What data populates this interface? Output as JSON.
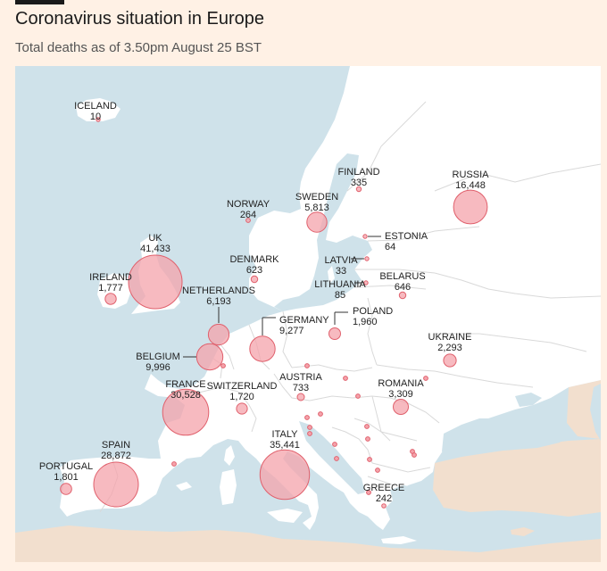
{
  "header": {
    "title": "Coronavirus situation in Europe",
    "subtitle": "Total deaths as of 3.50pm August 25 BST"
  },
  "colors": {
    "page_background": "#fff1e5",
    "sea": "#cfe2ea",
    "land": "#ffffff",
    "other_land": "#f2dfce",
    "bubble_fill": "#f4a3ab",
    "bubble_stroke": "#e0606c",
    "border": "#d9d9d9"
  },
  "legend": "none",
  "countries": [
    {
      "name": "ICELAND",
      "deaths": "10"
    },
    {
      "name": "FINLAND",
      "deaths": "335"
    },
    {
      "name": "RUSSIA",
      "deaths": "16,448"
    },
    {
      "name": "SWEDEN",
      "deaths": "5,813"
    },
    {
      "name": "NORWAY",
      "deaths": "264"
    },
    {
      "name": "ESTONIA",
      "deaths": "64"
    },
    {
      "name": "UK",
      "deaths": "41,433"
    },
    {
      "name": "DENMARK",
      "deaths": "623"
    },
    {
      "name": "LATVIA",
      "deaths": "33"
    },
    {
      "name": "IRELAND",
      "deaths": "1,777"
    },
    {
      "name": "LITHUANIA",
      "deaths": "85"
    },
    {
      "name": "BELARUS",
      "deaths": "646"
    },
    {
      "name": "NETHERLANDS",
      "deaths": "6,193"
    },
    {
      "name": "POLAND",
      "deaths": "1,960"
    },
    {
      "name": "GERMANY",
      "deaths": "9,277"
    },
    {
      "name": "UKRAINE",
      "deaths": "2,293"
    },
    {
      "name": "BELGIUM",
      "deaths": "9,996"
    },
    {
      "name": "FRANCE",
      "deaths": "30,528"
    },
    {
      "name": "SWITZERLAND",
      "deaths": "1,720"
    },
    {
      "name": "AUSTRIA",
      "deaths": "733"
    },
    {
      "name": "ROMANIA",
      "deaths": "3,309"
    },
    {
      "name": "ITALY",
      "deaths": "35,441"
    },
    {
      "name": "SPAIN",
      "deaths": "28,872"
    },
    {
      "name": "PORTUGAL",
      "deaths": "1,801"
    },
    {
      "name": "GREECE",
      "deaths": "242"
    }
  ]
}
